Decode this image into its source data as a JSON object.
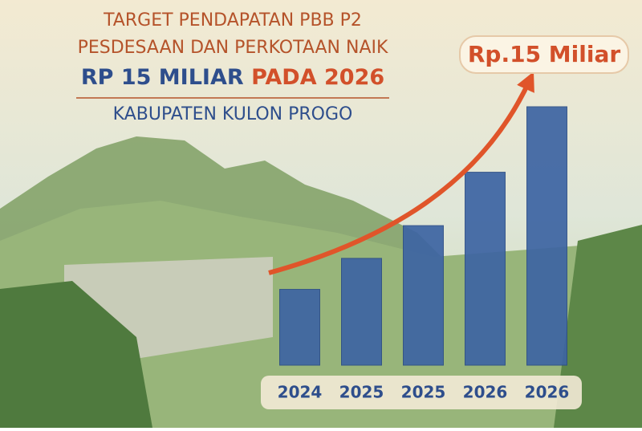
{
  "chart_data": {
    "type": "bar",
    "title_lines": [
      "TARGET PENDAPATAN PBB P2",
      "PESDESAAN DAN PERKOTAAN NAIK"
    ],
    "title_highlight": "RP 15 MILIAR",
    "title_tail": "PADA 2026",
    "subtitle": "KABUPATEN KULON PROGO",
    "annotation": "Rp.15 Miliar",
    "categories": [
      "2024",
      "2025",
      "2025",
      "2026",
      "2026"
    ],
    "values": [
      4.4,
      6.2,
      8.1,
      11.2,
      15
    ],
    "color": "#3d64a3"
  }
}
